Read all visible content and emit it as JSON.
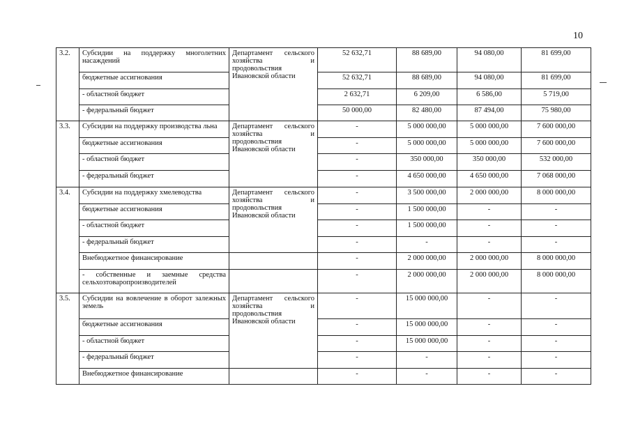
{
  "page_number": "10",
  "groups": [
    {
      "id": "3.2.",
      "dept": "Департамент сельского хозяйства и продовольствия Ивановской области",
      "dept_span": 4,
      "rows": [
        {
          "label": "Субсидии на поддержку многолетних насаждений",
          "h": 35,
          "v": [
            "52 632,71",
            "88 689,00",
            "94 080,00",
            "81 699,00"
          ]
        },
        {
          "label": "бюджетные ассигнования",
          "h": 24,
          "v": [
            "52 632,71",
            "88 689,00",
            "94 080,00",
            "81 699,00"
          ]
        },
        {
          "label": "- областной бюджет",
          "h": 23,
          "v": [
            "2 632,71",
            "6 209,00",
            "6 586,00",
            "5 719,00"
          ]
        },
        {
          "label": "- федеральный бюджет",
          "h": 23,
          "v": [
            "50 000,00",
            "82 480,00",
            "87 494,00",
            "75 980,00"
          ]
        }
      ]
    },
    {
      "id": "3.3.",
      "dept": "Департамент сельского хозяйства и продовольствия Ивановской области",
      "dept_span": 4,
      "rows": [
        {
          "label": "Субсидии на поддержку производства льна",
          "h": 24,
          "v": [
            "-",
            "5 000 000,00",
            "5 000 000,00",
            "7 600 000,00"
          ]
        },
        {
          "label": "бюджетные ассигнования",
          "h": 23,
          "v": [
            "-",
            "5 000 000,00",
            "5 000 000,00",
            "7 600 000,00"
          ]
        },
        {
          "label": "- областной бюджет",
          "h": 24,
          "v": [
            "-",
            "350 000,00",
            "350 000,00",
            "532 000,00"
          ]
        },
        {
          "label": "- федеральный бюджет",
          "h": 24,
          "v": [
            "-",
            "4 650 000,00",
            "4 650 000,00",
            "7 068 000,00"
          ]
        }
      ]
    },
    {
      "id": "3.4.",
      "dept": "Департамент сельского хозяйства и продовольствия Ивановской области",
      "dept_span": 4,
      "rows": [
        {
          "label": "Субсидии на поддержку хмелеводства",
          "h": 24,
          "v": [
            "-",
            "3 500 000,00",
            "2 000 000,00",
            "8 000 000,00"
          ]
        },
        {
          "label": "бюджетные ассигнования",
          "h": 23,
          "v": [
            "-",
            "1 500 000,00",
            "-",
            "-"
          ]
        },
        {
          "label": "- областной бюджет",
          "h": 24,
          "v": [
            "-",
            "1 500 000,00",
            "-",
            "-"
          ]
        },
        {
          "label": "- федеральный бюджет",
          "h": 23,
          "v": [
            "-",
            "-",
            "-",
            "-"
          ]
        },
        {
          "label": "Внебюджетное финансирование",
          "h": 24,
          "v": [
            "-",
            "2 000 000,00",
            "2 000 000,00",
            "8 000 000,00"
          ]
        },
        {
          "label": "- собственные и заемные средства сельхозтоваропроизводителей",
          "h": 34,
          "v": [
            "-",
            "2 000 000,00",
            "2 000 000,00",
            "8 000 000,00"
          ]
        }
      ]
    },
    {
      "id": "3.5.",
      "dept": "Департамент сельского хозяйства и продовольствия Ивановской области",
      "dept_span": 4,
      "rows": [
        {
          "label": "Субсидии на вовлечение в оборот залежных земель",
          "h": 37,
          "v": [
            "-",
            "15 000 000,00",
            "-",
            "-"
          ]
        },
        {
          "label": "бюджетные ассигнования",
          "h": 24,
          "v": [
            "-",
            "15 000 000,00",
            "-",
            "-"
          ]
        },
        {
          "label": "- областной бюджет",
          "h": 23,
          "v": [
            "-",
            "15 000 000,00",
            "-",
            "-"
          ]
        },
        {
          "label": "- федеральный бюджет",
          "h": 24,
          "v": [
            "-",
            "-",
            "-",
            "-"
          ]
        },
        {
          "label": "Внебюджетное финансирование",
          "h": 23,
          "v": [
            "-",
            "-",
            "-",
            "-"
          ]
        }
      ]
    }
  ]
}
